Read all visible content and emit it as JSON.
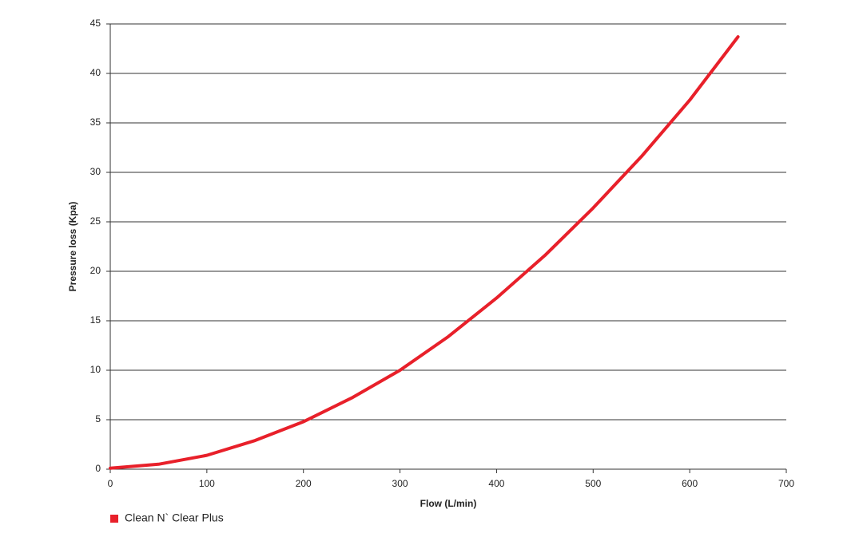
{
  "chart_data": {
    "type": "line",
    "x_label": "Flow (L/min)",
    "y_label": "Pressure loss (Kpa)",
    "x": [
      0,
      50,
      100,
      150,
      200,
      250,
      300,
      350,
      400,
      450,
      500,
      550,
      600,
      650
    ],
    "series": [
      {
        "name": "Clean N` Clear Plus",
        "color": "#e8202a",
        "values": [
          0.1,
          0.5,
          1.4,
          2.9,
          4.8,
          7.2,
          10.0,
          13.4,
          17.3,
          21.6,
          26.4,
          31.6,
          37.3,
          43.7
        ]
      }
    ],
    "xlim": [
      0,
      700
    ],
    "xticks": [
      0,
      100,
      200,
      300,
      400,
      500,
      600,
      700
    ],
    "ylim": [
      0,
      45
    ],
    "yticks": [
      0,
      5,
      10,
      15,
      20,
      25,
      30,
      35,
      40,
      45
    ],
    "grid": true
  }
}
